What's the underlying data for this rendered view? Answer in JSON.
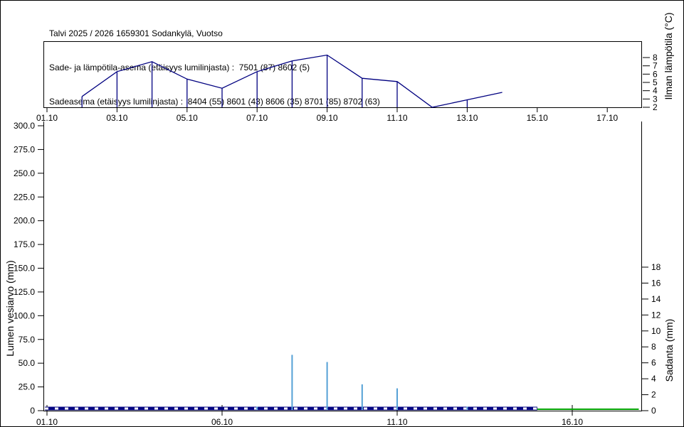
{
  "header": {
    "line1": "Talvi 2025 / 2026 1659301 Sodankylä, Vuotso",
    "line2": "Sade- ja lämpötila-asema (etäisyys lumilinjasta) :  7501 (87) 8602 (5)",
    "line3": "Sadeasema (etäisyys lumilinjasta) :  8404 (55) 8601 (43) 8606 (35) 8701 (85) 8702 (63)"
  },
  "colors": {
    "temp_line": "#000080",
    "swe_dashed_line": "#000080",
    "swe_dash_gap": "#ffffff",
    "precip_bar": "#55a1d6",
    "zero_green_line": "#00a000",
    "axis": "#000000",
    "background": "#ffffff"
  },
  "chart_data": [
    {
      "type": "line",
      "panel": "top",
      "title": "",
      "ylabel": "Ilman lämpötila (°C)",
      "x_axis": {
        "range_days": [
          1,
          18
        ],
        "tick_days": [
          1,
          3,
          5,
          7,
          9,
          11,
          13,
          15,
          17
        ],
        "tick_labels": [
          "01.10",
          "03.10",
          "05.10",
          "07.10",
          "09.10",
          "11.10",
          "13.10",
          "15.10",
          "17.10"
        ]
      },
      "y_axis": {
        "ticks": [
          "2",
          "3",
          "4",
          "5",
          "6",
          "7",
          "8"
        ],
        "tick_values": [
          2,
          3,
          4,
          5,
          6,
          7,
          8
        ],
        "range": [
          2,
          10
        ]
      },
      "series": [
        {
          "name": "Ilman lämpötila",
          "color": "#000080",
          "points": [
            {
              "day": 2,
              "value": 3.3,
              "dropline": true
            },
            {
              "day": 3,
              "value": 6.3,
              "dropline": true
            },
            {
              "day": 4,
              "value": 7.5,
              "dropline": true
            },
            {
              "day": 5,
              "value": 5.4,
              "dropline": true
            },
            {
              "day": 6,
              "value": 4.3,
              "dropline": true
            },
            {
              "day": 7,
              "value": 6.3,
              "dropline": true
            },
            {
              "day": 8,
              "value": 7.6,
              "dropline": true
            },
            {
              "day": 9,
              "value": 8.3,
              "dropline": true
            },
            {
              "day": 10,
              "value": 5.5,
              "dropline": true
            },
            {
              "day": 11,
              "value": 5.1,
              "dropline": true
            },
            {
              "day": 12,
              "value": 2.0,
              "dropline": false
            },
            {
              "day": 13,
              "value": 2.9,
              "dropline": true
            },
            {
              "day": 14,
              "value": 3.8,
              "dropline": false
            }
          ]
        }
      ]
    },
    {
      "type": "bar+line",
      "panel": "bottom",
      "left_y_axis": {
        "label": "Lumen vesiarvo (mm)",
        "tick_labels": [
          "0",
          "25.0",
          "50.0",
          "75.0",
          "100.0",
          "125.0",
          "150.0",
          "175.0",
          "200.0",
          "225.0",
          "250.0",
          "275.0",
          "300.0"
        ],
        "tick_values": [
          0,
          25,
          50,
          75,
          100,
          125,
          150,
          175,
          200,
          225,
          250,
          275,
          300
        ],
        "range": [
          0,
          300
        ]
      },
      "right_y_axis": {
        "label": "Sadanta (mm)",
        "tick_labels": [
          "0",
          "2",
          "4",
          "6",
          "8",
          "10",
          "12",
          "14",
          "16",
          "18"
        ],
        "tick_values": [
          0,
          2,
          4,
          6,
          8,
          10,
          12,
          14,
          16,
          18
        ],
        "range": [
          0,
          18
        ]
      },
      "x_axis": {
        "range_days": [
          1,
          18
        ],
        "tick_days": [
          1,
          6,
          11,
          16
        ],
        "tick_labels": [
          "01.10",
          "06.10",
          "11.10",
          "16.10"
        ]
      },
      "series": [
        {
          "name": "Lumen vesiarvo",
          "type": "dashed-line",
          "axis": "left",
          "color": "#000080",
          "from_day": 1,
          "to_day": 15,
          "value": 0
        },
        {
          "name": "Sadanta",
          "type": "bar",
          "axis": "right",
          "color": "#55a1d6",
          "bars": [
            {
              "day": 7,
              "value": 0.5
            },
            {
              "day": 8,
              "value": 7.0
            },
            {
              "day": 9,
              "value": 6.1
            },
            {
              "day": 10,
              "value": 3.3
            },
            {
              "day": 11,
              "value": 2.8
            },
            {
              "day": 13,
              "value": 0.5
            }
          ]
        },
        {
          "name": "zero-line-green",
          "type": "line",
          "axis": "right",
          "color": "#00a000",
          "from_day": 15,
          "to_day": 17.9,
          "value": 0
        }
      ]
    }
  ]
}
